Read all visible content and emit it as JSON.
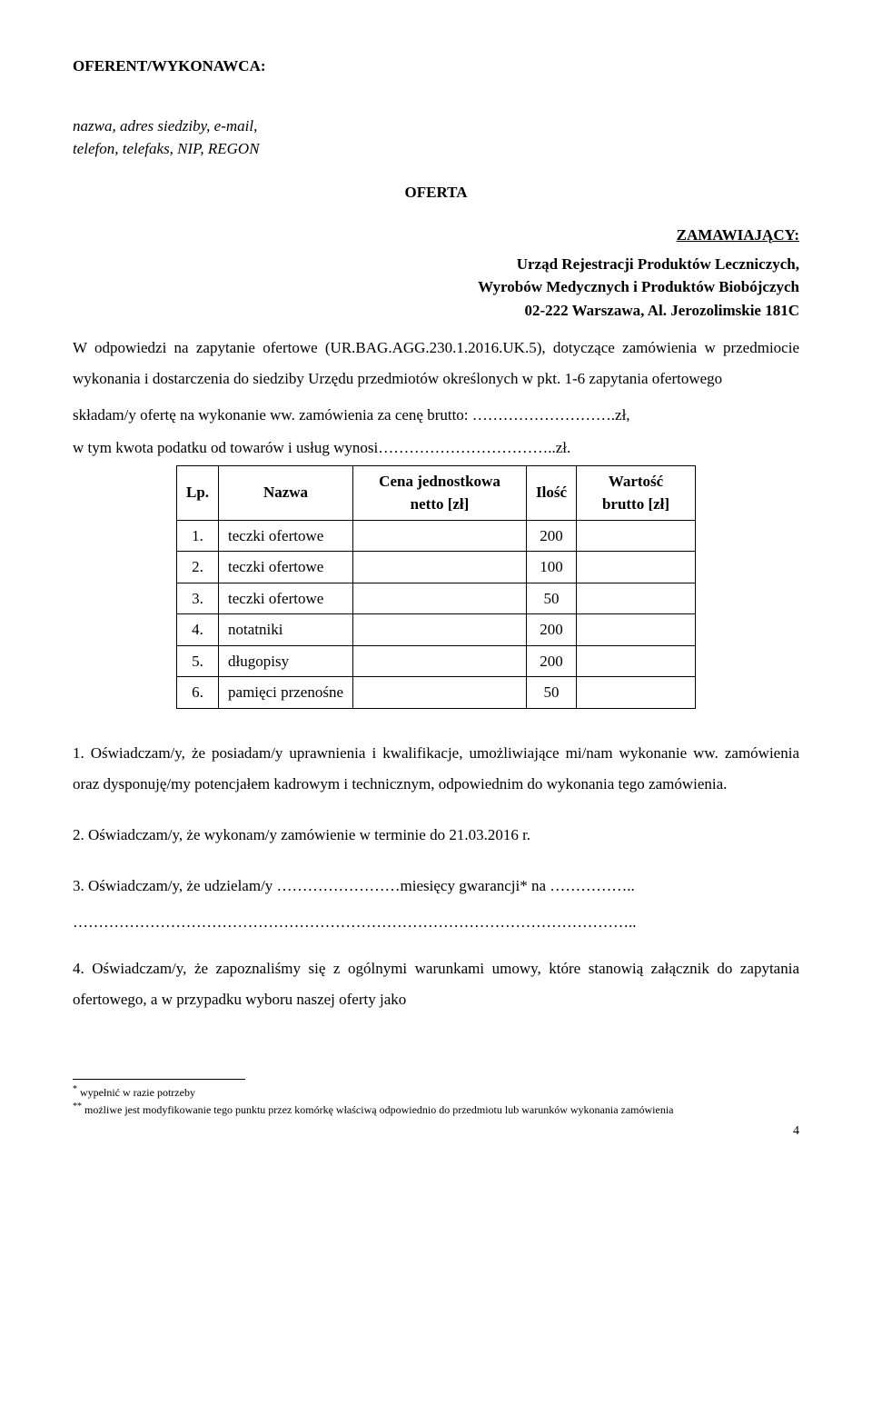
{
  "header_label": "OFERENT/WYKONAWCA:",
  "offeror_lines": [
    "nazwa, adres siedziby, e-mail,",
    "telefon, telefaks, NIP, REGON"
  ],
  "title_oferta": "OFERTA",
  "title_zam": "ZAMAWIAJĄCY:",
  "ordering_party": [
    "Urząd Rejestracji Produktów Leczniczych,",
    "Wyrobów Medycznych i Produktów Biobójczych",
    "02-222 Warszawa, Al. Jerozolimskie 181C"
  ],
  "intro_para": "W odpowiedzi na zapytanie ofertowe (UR.BAG.AGG.230.1.2016.UK.5), dotyczące zamówienia w przedmiocie wykonania i dostarczenia do siedziby Urzędu przedmiotów określonych w pkt. 1-6 zapytania ofertowego",
  "line_skladam": "składam/y ofertę na wykonanie ww. zamówienia za cenę brutto: ……………………….zł,",
  "line_kwota": "w tym kwota podatku od towarów i usług wynosi……………………………..zł.",
  "table": {
    "columns": [
      "Lp.",
      "Nazwa",
      "Cena jednostkowa netto [zł]",
      "Ilość",
      "Wartość brutto [zł]"
    ],
    "rows": [
      {
        "lp": "1.",
        "name": "teczki ofertowe",
        "unit": "",
        "qty": "200",
        "val": ""
      },
      {
        "lp": "2.",
        "name": "teczki ofertowe",
        "unit": "",
        "qty": "100",
        "val": ""
      },
      {
        "lp": "3.",
        "name": "teczki ofertowe",
        "unit": "",
        "qty": "50",
        "val": ""
      },
      {
        "lp": "4.",
        "name": "notatniki",
        "unit": "",
        "qty": "200",
        "val": ""
      },
      {
        "lp": "5.",
        "name": "długopisy",
        "unit": "",
        "qty": "200",
        "val": ""
      },
      {
        "lp": "6.",
        "name": "pamięci przenośne",
        "unit": "",
        "qty": "50",
        "val": ""
      }
    ]
  },
  "declarations": [
    "1. Oświadczam/y, że posiadam/y uprawnienia i kwalifikacje, umożliwiające mi/nam wykonanie ww. zamówienia oraz dysponuję/my potencjałem kadrowym i technicznym, odpowiednim do wykonania tego zamówienia.",
    "2. Oświadczam/y, że wykonam/y zamówienie w terminie do 21.03.2016 r.",
    "3. Oświadczam/y, że udzielam/y ……………………miesięcy gwarancji* na ……………..",
    "………………………………………………………………………………………………..",
    "4. Oświadczam/y, że zapoznaliśmy się z ogólnymi warunkami umowy, które stanowią załącznik do zapytania ofertowego, a w przypadku wyboru naszej oferty jako"
  ],
  "footnotes": [
    {
      "mark": "*",
      "text": "wypełnić w razie potrzeby"
    },
    {
      "mark": "**",
      "text": "możliwe jest modyfikowanie tego punktu przez komórkę właściwą odpowiednio do przedmiotu lub warunków wykonania zamówienia"
    }
  ],
  "page_number": "4"
}
